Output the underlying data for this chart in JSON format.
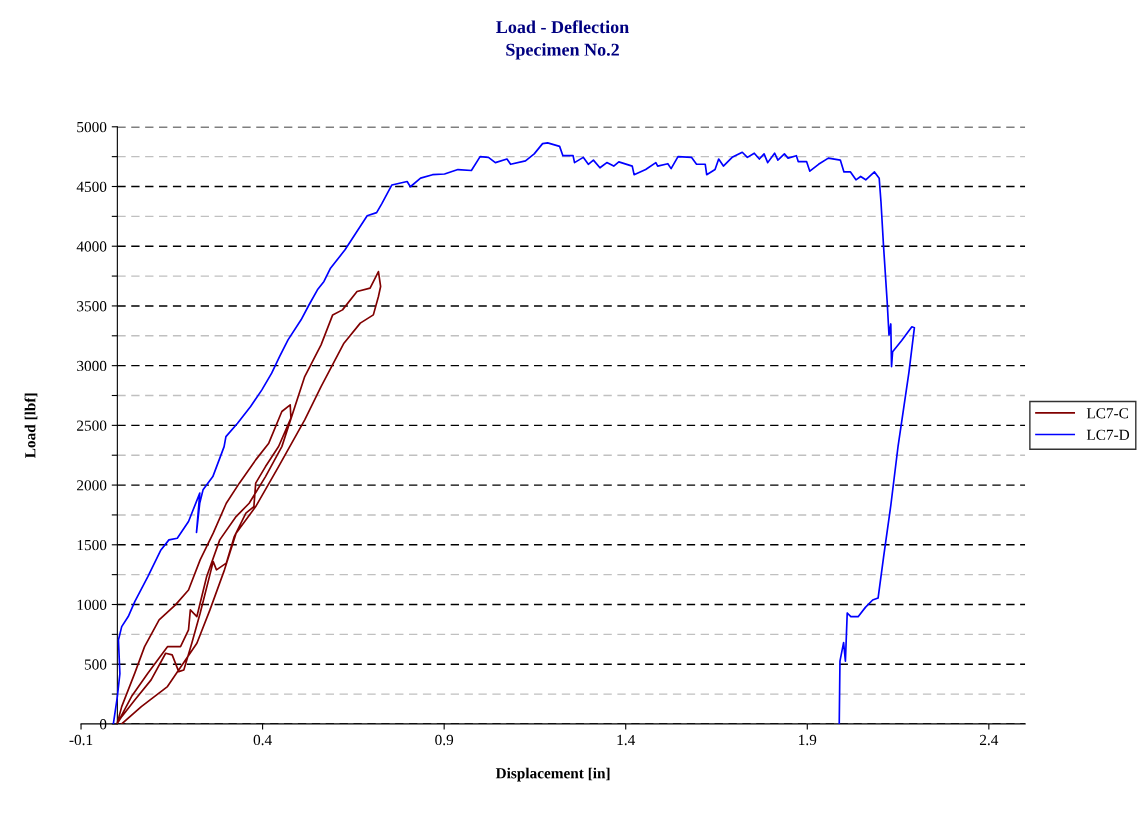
{
  "chart_data": {
    "type": "line",
    "title": "Load - Deflection\nSpecimen No.2",
    "xlabel": "Displacement [in]",
    "ylabel": "Load [lbf]",
    "xlim": [
      -0.1,
      2.5
    ],
    "xticks": [
      -0.1,
      0.4,
      0.9,
      1.4,
      1.9,
      2.4
    ],
    "ylim": [
      0,
      5000
    ],
    "yticks": [
      0,
      {
        "value": 250,
        "label": null
      },
      500,
      {
        "value": 750,
        "label": null
      },
      1000,
      {
        "value": 1250,
        "label": null
      },
      1500,
      {
        "value": 1750,
        "label": null
      },
      2000,
      {
        "value": 2250,
        "label": null
      },
      2500,
      {
        "value": 2750,
        "label": null
      },
      3000,
      {
        "value": 3250,
        "label": null
      },
      3500,
      {
        "value": 3750,
        "label": null
      },
      4000,
      {
        "value": 4250,
        "label": null
      },
      4500,
      {
        "value": 4750,
        "label": null
      },
      5000
    ],
    "grid": "y",
    "legend": "right",
    "marker": "none",
    "line_style": "solid",
    "series": [
      {
        "name": "LC7-C",
        "color": "#800000",
        "x": [
          0.0,
          0.012,
          0.048,
          0.075,
          0.115,
          0.16,
          0.196,
          0.228,
          0.264,
          0.3,
          0.336,
          0.381,
          0.417,
          0.453,
          0.476,
          0.478,
          0.444,
          0.408,
          0.381,
          0.376,
          0.354,
          0.322,
          0.3,
          0.273,
          0.264,
          0.228,
          0.205,
          0.183,
          0.169,
          0.151,
          0.133,
          0.093,
          0.048,
          0.012,
          0.0,
          0.039,
          0.084,
          0.138,
          0.174,
          0.196,
          0.201,
          0.219,
          0.246,
          0.282,
          0.327,
          0.363,
          0.408,
          0.453,
          0.516,
          0.561,
          0.593,
          0.62,
          0.66,
          0.696,
          0.719,
          0.725,
          0.719,
          0.705,
          0.669,
          0.624,
          0.561,
          0.516,
          0.444,
          0.381,
          0.327,
          0.295,
          0.255,
          0.219,
          0.138,
          0.066,
          0.012
        ],
        "values": [
          10,
          145,
          425,
          647,
          871,
          997,
          1122,
          1374,
          1597,
          1848,
          2016,
          2211,
          2351,
          2616,
          2672,
          2560,
          2323,
          2155,
          2016,
          1820,
          1765,
          1569,
          1346,
          1290,
          1359,
          927,
          676,
          452,
          438,
          578,
          592,
          369,
          201,
          61,
          5,
          229,
          425,
          647,
          647,
          787,
          955,
          899,
          1234,
          1541,
          1736,
          1848,
          2071,
          2322,
          2909,
          3174,
          3425,
          3467,
          3621,
          3649,
          3788,
          3663,
          3579,
          3425,
          3356,
          3188,
          2825,
          2546,
          2155,
          1820,
          1597,
          1290,
          955,
          676,
          313,
          145,
          0
        ]
      },
      {
        "name": "LC7-D",
        "color": "#0000ff",
        "x": [
          -0.011,
          0.0,
          0.007,
          0.003,
          0.012,
          0.03,
          0.048,
          0.084,
          0.12,
          0.142,
          0.165,
          0.196,
          0.227,
          0.218,
          0.227,
          0.236,
          0.263,
          0.294,
          0.299,
          0.331,
          0.367,
          0.398,
          0.425,
          0.447,
          0.47,
          0.506,
          0.528,
          0.551,
          0.569,
          0.587,
          0.627,
          0.688,
          0.714,
          0.728,
          0.756,
          0.798,
          0.807,
          0.835,
          0.868,
          0.901,
          0.938,
          0.975,
          0.999,
          1.022,
          1.041,
          1.073,
          1.083,
          1.124,
          1.148,
          1.171,
          1.185,
          1.218,
          1.227,
          1.255,
          1.259,
          1.283,
          1.297,
          1.311,
          1.329,
          1.348,
          1.367,
          1.381,
          1.418,
          1.423,
          1.455,
          1.483,
          1.488,
          1.516,
          1.525,
          1.544,
          1.581,
          1.595,
          1.619,
          1.623,
          1.646,
          1.656,
          1.669,
          1.693,
          1.721,
          1.735,
          1.754,
          1.768,
          1.781,
          1.791,
          1.81,
          1.819,
          1.837,
          1.847,
          1.87,
          1.875,
          1.898,
          1.907,
          1.931,
          1.958,
          1.991,
          2.001,
          2.019,
          2.034,
          2.047,
          2.061,
          2.085,
          2.098,
          2.103,
          2.11,
          2.12,
          2.125,
          2.13,
          2.132,
          2.135,
          2.16,
          2.188,
          2.195,
          2.18,
          2.15,
          2.13,
          2.11,
          2.095,
          2.08,
          2.06,
          2.04,
          2.02,
          2.01,
          2.005,
          2.0,
          1.99,
          1.988
        ],
        "values": [
          0,
          229,
          420,
          703,
          815,
          899,
          1024,
          1233,
          1457,
          1541,
          1555,
          1695,
          1933,
          1604,
          1850,
          1960,
          2071,
          2322,
          2406,
          2518,
          2658,
          2797,
          2937,
          3077,
          3216,
          3384,
          3510,
          3635,
          3705,
          3816,
          3970,
          4255,
          4281,
          4355,
          4513,
          4542,
          4498,
          4570,
          4599,
          4605,
          4642,
          4634,
          4750,
          4744,
          4700,
          4730,
          4686,
          4715,
          4773,
          4859,
          4865,
          4836,
          4758,
          4758,
          4700,
          4744,
          4686,
          4721,
          4657,
          4700,
          4671,
          4706,
          4671,
          4599,
          4642,
          4700,
          4671,
          4691,
          4650,
          4750,
          4744,
          4686,
          4686,
          4599,
          4642,
          4730,
          4671,
          4744,
          4787,
          4744,
          4779,
          4730,
          4773,
          4700,
          4779,
          4721,
          4773,
          4738,
          4758,
          4709,
          4709,
          4628,
          4686,
          4738,
          4721,
          4622,
          4622,
          4556,
          4584,
          4556,
          4622,
          4570,
          4368,
          4001,
          3535,
          3256,
          3349,
          2992,
          3116,
          3210,
          3325,
          3318,
          2946,
          2325,
          1829,
          1395,
          1054,
          1038,
          976,
          898,
          898,
          929,
          526,
          681,
          526,
          0
        ]
      }
    ]
  }
}
